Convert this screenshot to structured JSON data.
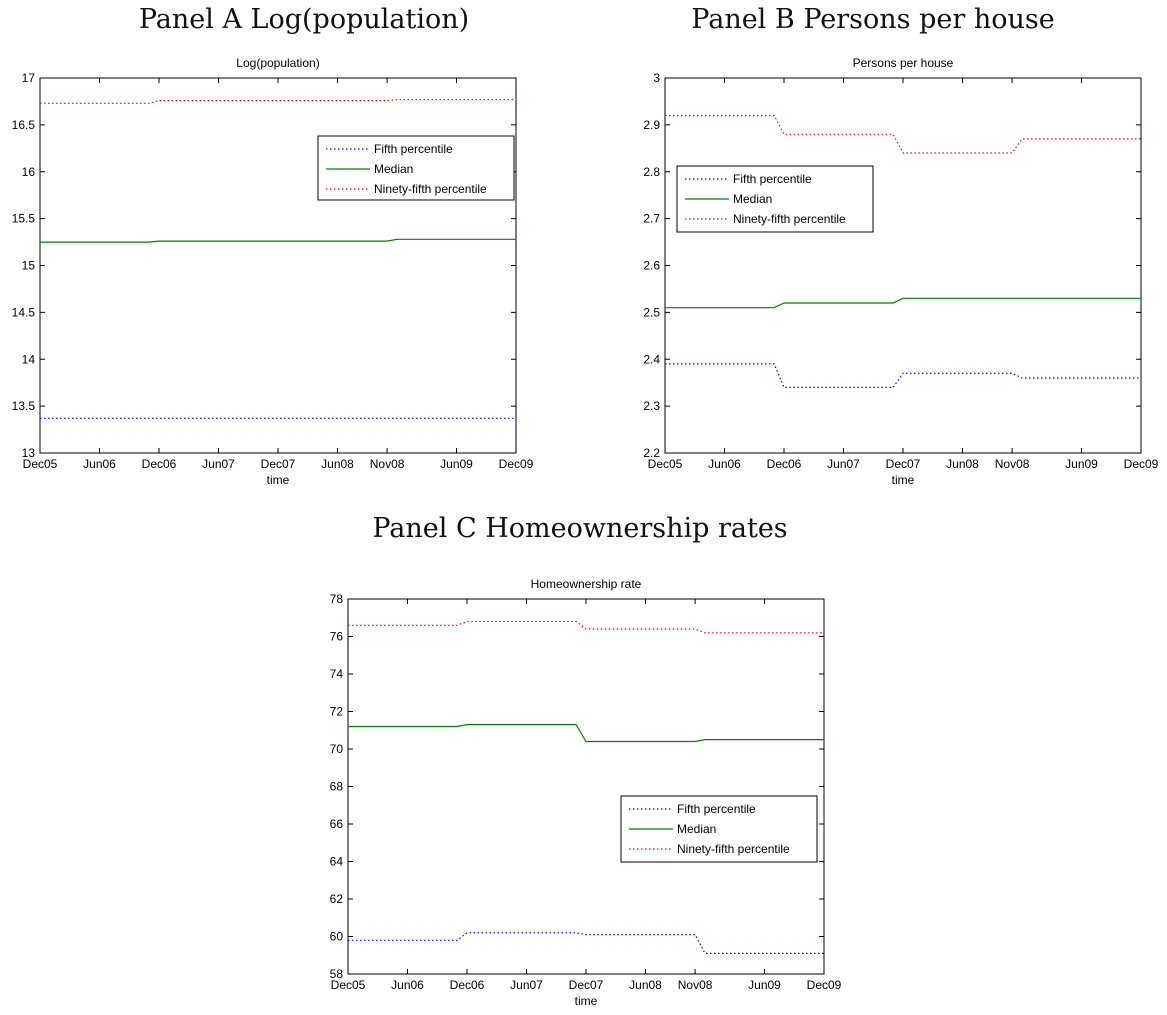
{
  "panels": [
    {
      "heading": "Panel A Log(population)"
    },
    {
      "heading": "Panel B Persons per house"
    },
    {
      "heading": "Panel C Homeownership rates"
    }
  ],
  "chart_data": [
    {
      "type": "line",
      "title": "Log(population)",
      "xlabel": "time",
      "ylabel": "",
      "x_range": [
        0,
        48
      ],
      "ylim": [
        13,
        17
      ],
      "yticks": [
        13,
        13.5,
        14,
        14.5,
        15,
        15.5,
        16,
        16.5,
        17
      ],
      "ytick_labels": [
        "13",
        "13.5",
        "14",
        "14.5",
        "15",
        "15.5",
        "16",
        "16.5",
        "17"
      ],
      "xticks": [
        {
          "x": 0,
          "label": "Dec05"
        },
        {
          "x": 6,
          "label": "Jun06"
        },
        {
          "x": 12,
          "label": "Dec06"
        },
        {
          "x": 18,
          "label": "Jun07"
        },
        {
          "x": 24,
          "label": "Dec07"
        },
        {
          "x": 30,
          "label": "Jun08"
        },
        {
          "x": 35,
          "label": "Nov08"
        },
        {
          "x": 42,
          "label": "Jun09"
        },
        {
          "x": 48,
          "label": "Dec09"
        }
      ],
      "legend_position": "top-right",
      "series": [
        {
          "name": "Fifth percentile",
          "color": "#0000ff",
          "dash": "dotted",
          "points": [
            [
              0,
              13.37
            ],
            [
              48,
              13.37
            ]
          ]
        },
        {
          "name": "Median",
          "color": "#008000",
          "dash": "solid",
          "points": [
            [
              0,
              15.25
            ],
            [
              11,
              15.25
            ],
            [
              12,
              15.26
            ],
            [
              35,
              15.26
            ],
            [
              36,
              15.28
            ],
            [
              48,
              15.28
            ]
          ]
        },
        {
          "name": "Ninety-fifth percentile",
          "color": "#ff0000",
          "dash": "dotted",
          "points": [
            [
              0,
              16.73
            ],
            [
              11,
              16.73
            ],
            [
              12,
              16.76
            ],
            [
              35,
              16.76
            ],
            [
              36,
              16.77
            ],
            [
              48,
              16.77
            ]
          ]
        }
      ]
    },
    {
      "type": "line",
      "title": "Persons per house",
      "xlabel": "time",
      "ylabel": "",
      "x_range": [
        0,
        48
      ],
      "ylim": [
        2.2,
        3.0
      ],
      "yticks": [
        2.2,
        2.3,
        2.4,
        2.5,
        2.6,
        2.7,
        2.8,
        2.9,
        3.0
      ],
      "ytick_labels": [
        "2.2",
        "2.3",
        "2.4",
        "2.5",
        "2.6",
        "2.7",
        "2.8",
        "2.9",
        "3"
      ],
      "xticks": [
        {
          "x": 0,
          "label": "Dec05"
        },
        {
          "x": 6,
          "label": "Jun06"
        },
        {
          "x": 12,
          "label": "Dec06"
        },
        {
          "x": 18,
          "label": "Jun07"
        },
        {
          "x": 24,
          "label": "Dec07"
        },
        {
          "x": 30,
          "label": "Jun08"
        },
        {
          "x": 35,
          "label": "Nov08"
        },
        {
          "x": 42,
          "label": "Jun09"
        },
        {
          "x": 48,
          "label": "Dec09"
        }
      ],
      "legend_position": "middle-left",
      "series": [
        {
          "name": "Fifth percentile",
          "color": "#0000ff",
          "dash": "dotted",
          "points": [
            [
              0,
              2.39
            ],
            [
              11,
              2.39
            ],
            [
              12,
              2.34
            ],
            [
              23,
              2.34
            ],
            [
              24,
              2.37
            ],
            [
              35,
              2.37
            ],
            [
              36,
              2.36
            ],
            [
              48,
              2.36
            ]
          ]
        },
        {
          "name": "Median",
          "color": "#008000",
          "dash": "solid",
          "points": [
            [
              0,
              2.51
            ],
            [
              11,
              2.51
            ],
            [
              12,
              2.52
            ],
            [
              23,
              2.52
            ],
            [
              24,
              2.53
            ],
            [
              48,
              2.53
            ]
          ]
        },
        {
          "name": "Ninety-fifth percentile",
          "color": "#ff0000",
          "dash": "dotted",
          "points": [
            [
              0,
              2.92
            ],
            [
              11,
              2.92
            ],
            [
              12,
              2.88
            ],
            [
              23,
              2.88
            ],
            [
              24,
              2.84
            ],
            [
              35,
              2.84
            ],
            [
              36,
              2.87
            ],
            [
              48,
              2.87
            ]
          ]
        }
      ]
    },
    {
      "type": "line",
      "title": "Homeownership rate",
      "xlabel": "time",
      "ylabel": "",
      "x_range": [
        0,
        48
      ],
      "ylim": [
        58,
        78
      ],
      "yticks": [
        58,
        60,
        62,
        64,
        66,
        68,
        70,
        72,
        74,
        76,
        78
      ],
      "ytick_labels": [
        "58",
        "60",
        "62",
        "64",
        "66",
        "68",
        "70",
        "72",
        "74",
        "76",
        "78"
      ],
      "xticks": [
        {
          "x": 0,
          "label": "Dec05"
        },
        {
          "x": 6,
          "label": "Jun06"
        },
        {
          "x": 12,
          "label": "Dec06"
        },
        {
          "x": 18,
          "label": "Jun07"
        },
        {
          "x": 24,
          "label": "Dec07"
        },
        {
          "x": 30,
          "label": "Jun08"
        },
        {
          "x": 35,
          "label": "Nov08"
        },
        {
          "x": 42,
          "label": "Jun09"
        },
        {
          "x": 48,
          "label": "Dec09"
        }
      ],
      "legend_position": "lower-right",
      "series": [
        {
          "name": "Fifth percentile",
          "color": "#0000ff",
          "dash": "dotted",
          "points": [
            [
              0,
              59.8
            ],
            [
              11,
              59.8
            ],
            [
              12,
              60.2
            ],
            [
              23,
              60.2
            ],
            [
              24,
              60.1
            ],
            [
              35,
              60.1
            ],
            [
              36,
              59.1
            ],
            [
              48,
              59.1
            ]
          ]
        },
        {
          "name": "Median",
          "color": "#008000",
          "dash": "solid",
          "points": [
            [
              0,
              71.2
            ],
            [
              11,
              71.2
            ],
            [
              12,
              71.3
            ],
            [
              23,
              71.3
            ],
            [
              24,
              70.4
            ],
            [
              35,
              70.4
            ],
            [
              36,
              70.5
            ],
            [
              48,
              70.5
            ]
          ]
        },
        {
          "name": "Ninety-fifth percentile",
          "color": "#ff0000",
          "dash": "dotted",
          "points": [
            [
              0,
              76.6
            ],
            [
              11,
              76.6
            ],
            [
              12,
              76.8
            ],
            [
              23,
              76.8
            ],
            [
              24,
              76.4
            ],
            [
              35,
              76.4
            ],
            [
              36,
              76.2
            ],
            [
              48,
              76.2
            ]
          ]
        }
      ]
    }
  ]
}
